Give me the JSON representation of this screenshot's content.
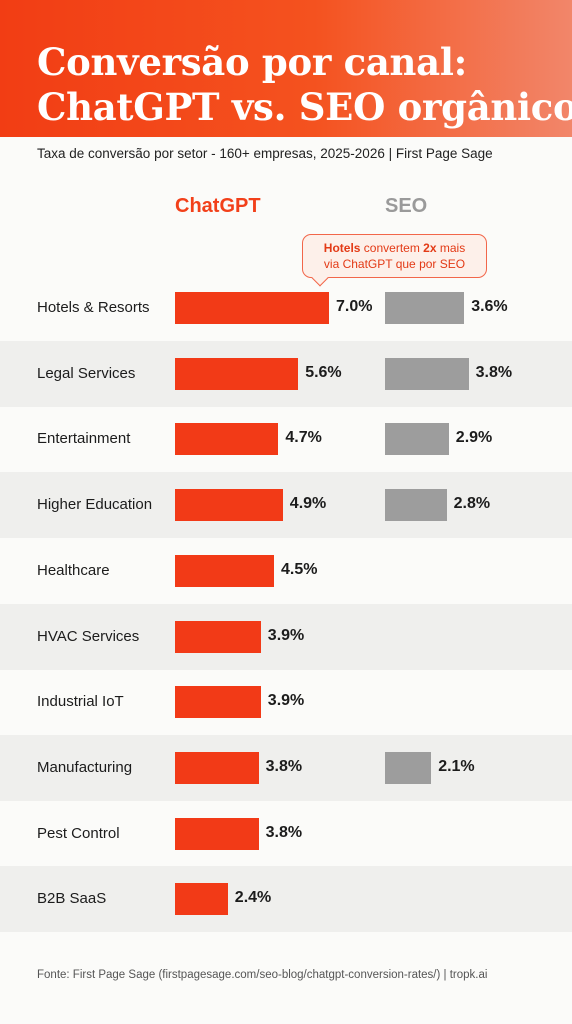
{
  "header": {
    "title_line1": "Conversão por canal:",
    "title_line2": "ChatGPT vs. SEO orgânico",
    "subtitle": "Taxa de conversão por setor - 160+ empresas, 2025-2026 | First Page Sage"
  },
  "callout": {
    "bold1": "Hotels",
    "text1": " convertem ",
    "bold2": "2x",
    "text2": " mais",
    "line2": "via ChatGPT que por SEO"
  },
  "source": "Fonte: First Page Sage (firstpagesage.com/seo-blog/chatgpt-conversion-rates/) | tropk.ai",
  "colors": {
    "chatgpt": "#f23a17",
    "seo": "#9d9d9d",
    "header_start": "#f23d14",
    "header_end": "#f2866a"
  },
  "chart_data": {
    "type": "bar",
    "orientation": "horizontal",
    "categories": [
      "Hotels & Resorts",
      "Legal Services",
      "Entertainment",
      "Higher Education",
      "Healthcare",
      "HVAC Services",
      "Industrial IoT",
      "Manufacturing",
      "Pest Control",
      "B2B SaaS"
    ],
    "series": [
      {
        "name": "ChatGPT",
        "color": "#f23a17",
        "values": [
          7.0,
          5.6,
          4.7,
          4.9,
          4.5,
          3.9,
          3.9,
          3.8,
          3.8,
          2.4
        ],
        "labels": [
          "7.0%",
          "5.6%",
          "4.7%",
          "4.9%",
          "4.5%",
          "3.9%",
          "3.9%",
          "3.8%",
          "3.8%",
          "2.4%"
        ]
      },
      {
        "name": "SEO",
        "color": "#9d9d9d",
        "values": [
          3.6,
          3.8,
          2.9,
          2.8,
          null,
          null,
          null,
          2.1,
          null,
          null
        ],
        "labels": [
          "3.6%",
          "3.8%",
          "2.9%",
          "2.8%",
          null,
          null,
          null,
          "2.1%",
          null,
          null
        ]
      }
    ],
    "legend_position": "top",
    "grid": false
  }
}
